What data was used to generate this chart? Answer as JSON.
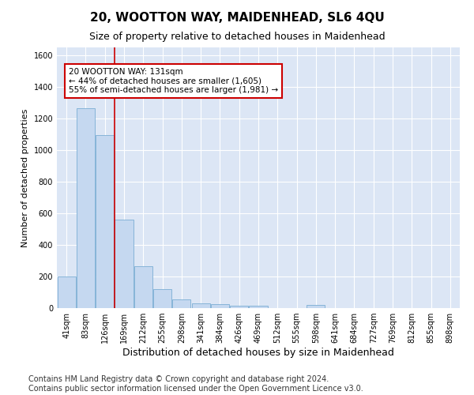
{
  "title": "20, WOOTTON WAY, MAIDENHEAD, SL6 4QU",
  "subtitle": "Size of property relative to detached houses in Maidenhead",
  "xlabel": "Distribution of detached houses by size in Maidenhead",
  "ylabel": "Number of detached properties",
  "bar_color": "#c5d8f0",
  "bar_edge_color": "#7aadd4",
  "categories": [
    "41sqm",
    "83sqm",
    "126sqm",
    "169sqm",
    "212sqm",
    "255sqm",
    "298sqm",
    "341sqm",
    "384sqm",
    "426sqm",
    "469sqm",
    "512sqm",
    "555sqm",
    "598sqm",
    "641sqm",
    "684sqm",
    "727sqm",
    "769sqm",
    "812sqm",
    "855sqm",
    "898sqm"
  ],
  "values": [
    200,
    1265,
    1095,
    560,
    265,
    120,
    55,
    30,
    25,
    15,
    15,
    0,
    0,
    20,
    0,
    0,
    0,
    0,
    0,
    0,
    0
  ],
  "ylim": [
    0,
    1650
  ],
  "yticks": [
    0,
    200,
    400,
    600,
    800,
    1000,
    1200,
    1400,
    1600
  ],
  "vline_x": 2.5,
  "vline_color": "#cc0000",
  "annotation_text": "20 WOOTTON WAY: 131sqm\n← 44% of detached houses are smaller (1,605)\n55% of semi-detached houses are larger (1,981) →",
  "annotation_box_color": "#ffffff",
  "annotation_box_edge_color": "#cc0000",
  "background_color": "#dce6f5",
  "grid_color": "#ffffff",
  "footer_line1": "Contains HM Land Registry data © Crown copyright and database right 2024.",
  "footer_line2": "Contains public sector information licensed under the Open Government Licence v3.0.",
  "title_fontsize": 11,
  "subtitle_fontsize": 9,
  "xlabel_fontsize": 9,
  "ylabel_fontsize": 8,
  "tick_fontsize": 7,
  "footer_fontsize": 7
}
